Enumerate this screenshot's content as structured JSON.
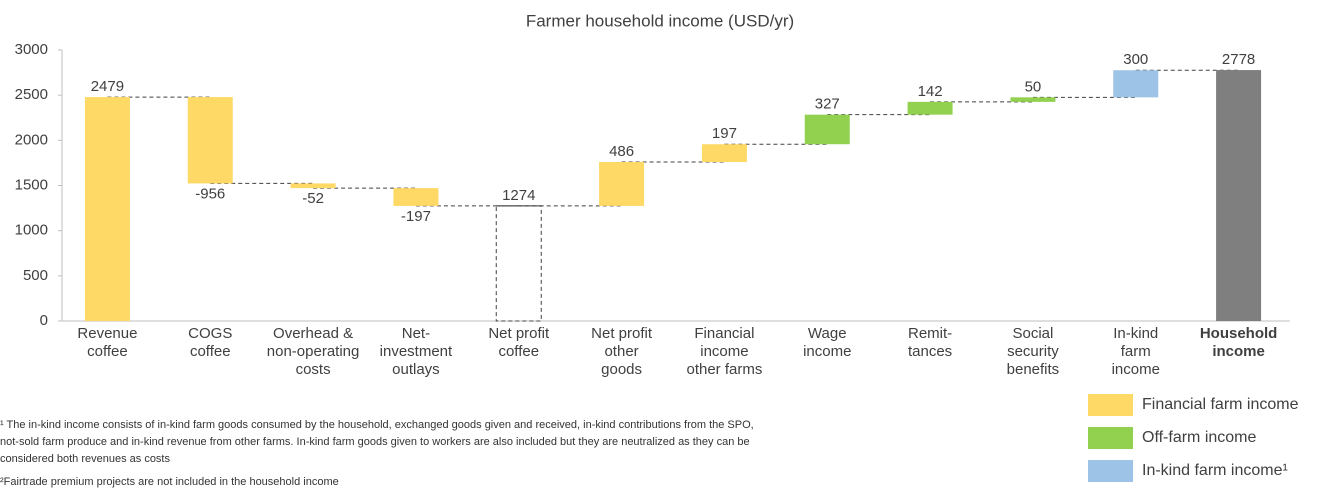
{
  "chart_data": {
    "type": "waterfall",
    "title": "Farmer household income (USD/yr)",
    "categories": [
      [
        "Revenue",
        "coffee"
      ],
      [
        "COGS",
        "coffee"
      ],
      [
        "Overhead &",
        "non-operating",
        "costs"
      ],
      [
        "Net-",
        "investment",
        "outlays"
      ],
      [
        "Net profit",
        "coffee"
      ],
      [
        "Net profit",
        "other",
        "goods"
      ],
      [
        "Financial",
        "income",
        "other farms"
      ],
      [
        "Wage",
        "income"
      ],
      [
        "Remit-",
        "tances"
      ],
      [
        "Social",
        "security",
        "benefits"
      ],
      [
        "In-kind",
        "farm",
        "income"
      ],
      [
        "Household",
        "income"
      ]
    ],
    "values": [
      2479,
      -956,
      -52,
      -197,
      1274,
      486,
      197,
      327,
      142,
      50,
      300,
      2778
    ],
    "measures": [
      "absolute",
      "relative",
      "relative",
      "relative",
      "total",
      "relative",
      "relative",
      "relative",
      "relative",
      "relative",
      "relative",
      "total"
    ],
    "colors": [
      "#FFD966",
      "#FFD966",
      "#FFD966",
      "#FFD966",
      null,
      "#FFD966",
      "#FFD966",
      "#92D050",
      "#92D050",
      "#92D050",
      "#9DC3E6",
      "#7F7F7F"
    ],
    "legend": [
      {
        "name": "Financial farm income",
        "color": "#FFD966"
      },
      {
        "name": "Off-farm income",
        "color": "#92D050"
      },
      {
        "name": "In-kind farm income¹",
        "color": "#9DC3E6"
      }
    ],
    "ylim": [
      0,
      3000
    ],
    "yticks": [
      0,
      500,
      1000,
      1500,
      2000,
      2500,
      3000
    ],
    "grid": false,
    "footnotes": [
      [
        "¹ The in-kind income consists of in-kind farm goods consumed by the household, exchanged goods given and received, in-kind contributions from the SPO,",
        "not-sold farm produce and in-kind revenue from other farms. In-kind farm goods given to workers are also included but they are neutralized as they can be",
        "considered both revenues as costs"
      ],
      [
        "²Fairtrade premium projects are not included in the household income"
      ]
    ]
  }
}
